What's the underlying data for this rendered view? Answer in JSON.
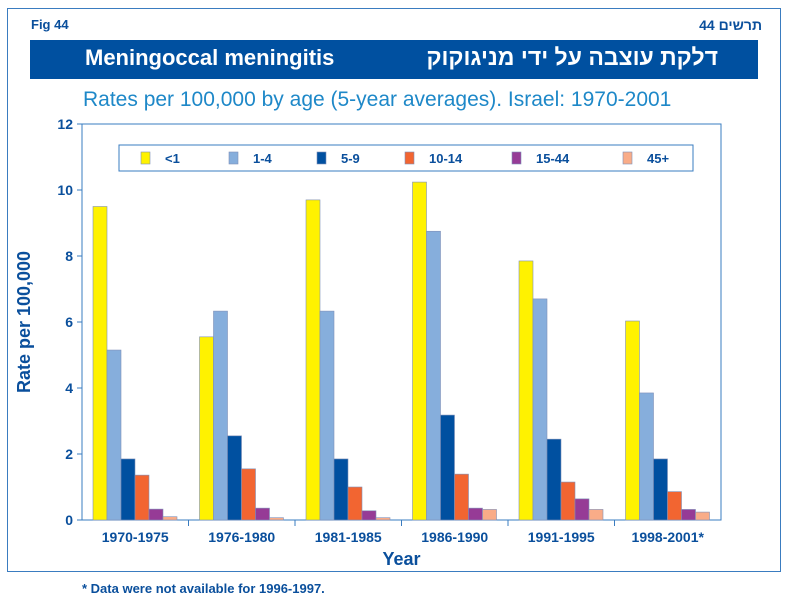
{
  "header": {
    "fig_en": "Fig  44",
    "fig_he": "תרשים 44",
    "title_en": "Meningoccal meningitis",
    "title_he": "דלקת עוצבה על ידי מניגוקוק"
  },
  "footnote": "* Data were not available for 1996-1997.",
  "chart_data": {
    "type": "bar",
    "title": "Rates per 100,000 by age (5-year averages). Israel: 1970-2001",
    "xlabel": "Year",
    "ylabel": "Rate per 100,000",
    "ylim": [
      0,
      12
    ],
    "yticks": [
      "0",
      "2",
      "4",
      "6",
      "8",
      "10",
      "12"
    ],
    "grid": false,
    "legend_position": "top",
    "categories": [
      "1970-1975",
      "1976-1980",
      "1981-1985",
      "1986-1990",
      "1991-1995",
      "1998-2001*"
    ],
    "series": [
      {
        "name": "<1",
        "color": "#fff200",
        "values": [
          9.5,
          5.55,
          9.7,
          10.24,
          7.85,
          6.03
        ]
      },
      {
        "name": "1-4",
        "color": "#86aedc",
        "values": [
          5.15,
          6.33,
          6.33,
          8.75,
          6.7,
          3.85
        ]
      },
      {
        "name": "5-9",
        "color": "#0050a0",
        "values": [
          1.85,
          2.55,
          1.85,
          3.18,
          2.45,
          1.85
        ]
      },
      {
        "name": "10-14",
        "color": "#f26531",
        "values": [
          1.36,
          1.55,
          1.0,
          1.39,
          1.15,
          0.86
        ]
      },
      {
        "name": "15-44",
        "color": "#963b96",
        "values": [
          0.33,
          0.36,
          0.28,
          0.36,
          0.64,
          0.32
        ]
      },
      {
        "name": "45+",
        "color": "#f9ac88",
        "values": [
          0.1,
          0.07,
          0.07,
          0.32,
          0.32,
          0.24
        ]
      }
    ]
  }
}
